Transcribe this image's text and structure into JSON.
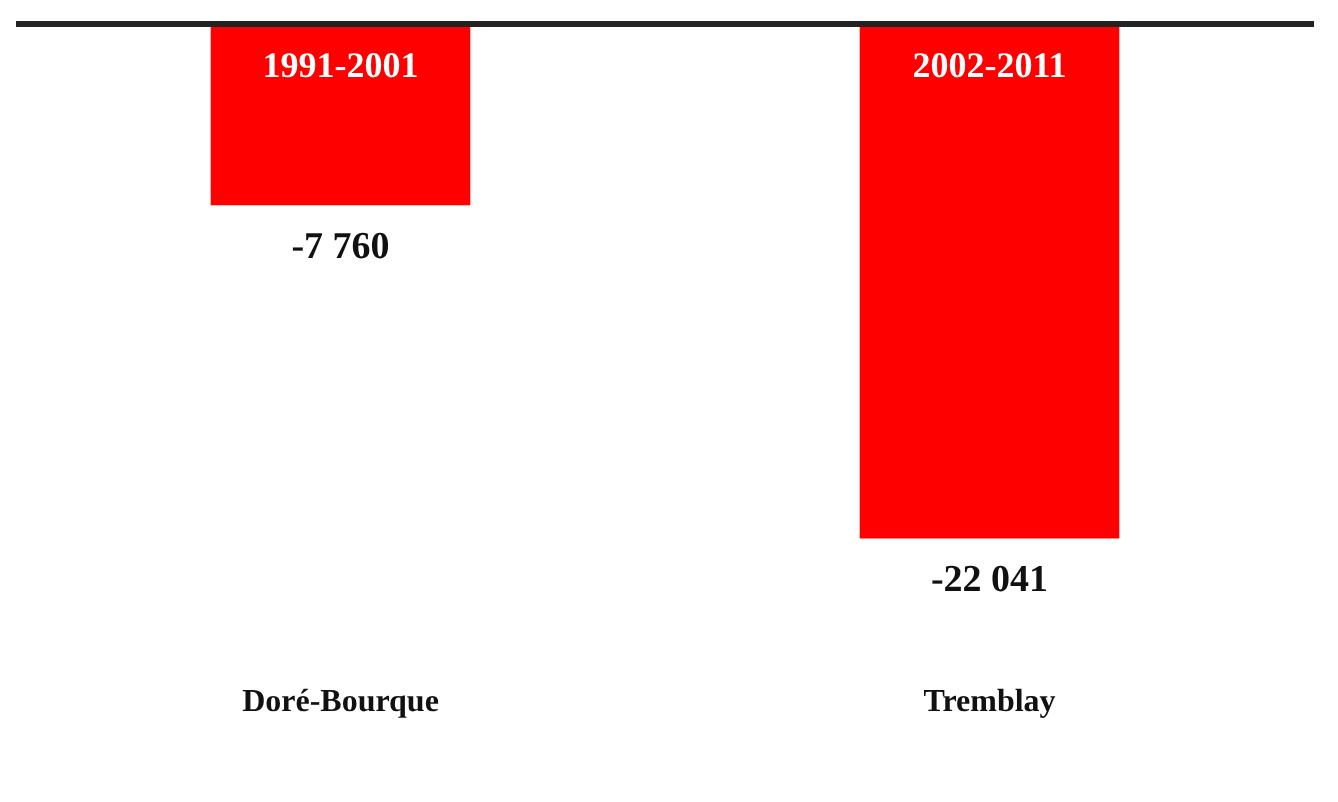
{
  "chart_data": {
    "type": "bar",
    "categories": [
      "Doré-Bourque",
      "Tremblay"
    ],
    "series": [
      {
        "color": "#ff0000",
        "values": [
          -7760,
          -22041
        ],
        "value_labels": [
          "-7 760",
          "-22 041"
        ]
      }
    ],
    "annotations": [
      "1991-2001",
      "2002-2011"
    ],
    "legend": false
  }
}
